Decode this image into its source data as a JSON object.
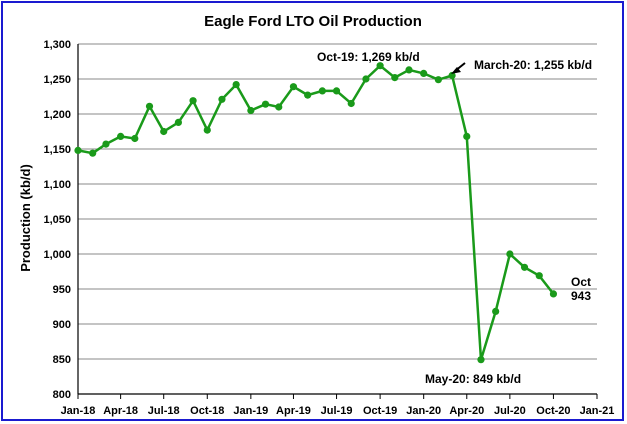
{
  "chart_data": {
    "type": "line",
    "title": "Eagle Ford LTO Oil Production",
    "xlabel": "",
    "ylabel": "Production (kb/d)",
    "ylim": [
      800,
      1300
    ],
    "y_ticks": [
      "800",
      "850",
      "900",
      "950",
      "1,000",
      "1,050",
      "1,100",
      "1,150",
      "1,200",
      "1,250",
      "1,300"
    ],
    "x_ticks": [
      "Jan-18",
      "Apr-18",
      "Jul-18",
      "Oct-18",
      "Jan-19",
      "Apr-19",
      "Jul-19",
      "Oct-19",
      "Jan-20",
      "Apr-20",
      "Jul-20",
      "Oct-20",
      "Jan-21"
    ],
    "grid": "horizontal",
    "series": [
      {
        "color": "#1a9a1a",
        "x": [
          "2018-01",
          "2018-02",
          "2018-03",
          "2018-04",
          "2018-05",
          "2018-06",
          "2018-07",
          "2018-08",
          "2018-09",
          "2018-10",
          "2018-11",
          "2018-12",
          "2019-01",
          "2019-02",
          "2019-03",
          "2019-04",
          "2019-05",
          "2019-06",
          "2019-07",
          "2019-08",
          "2019-09",
          "2019-10",
          "2019-11",
          "2019-12",
          "2020-01",
          "2020-02",
          "2020-03",
          "2020-04",
          "2020-05",
          "2020-06",
          "2020-07",
          "2020-08",
          "2020-09",
          "2020-10"
        ],
        "values": [
          1148,
          1144,
          1157,
          1168,
          1165,
          1211,
          1175,
          1188,
          1219,
          1177,
          1221,
          1242,
          1205,
          1214,
          1210,
          1239,
          1227,
          1233,
          1233,
          1215,
          1250,
          1269,
          1252,
          1263,
          1258,
          1249,
          1255,
          1168,
          849,
          918,
          1000,
          981,
          969,
          943
        ]
      }
    ],
    "annotations": [
      {
        "id": "oct19",
        "text": "Oct-19: 1,269 kb/d"
      },
      {
        "id": "mar20",
        "text": "March-20: 1,255 kb/d"
      },
      {
        "id": "may20",
        "text": "May-20: 849 kb/d"
      },
      {
        "id": "oct20a",
        "text": "Oct"
      },
      {
        "id": "oct20b",
        "text": "943"
      }
    ]
  }
}
